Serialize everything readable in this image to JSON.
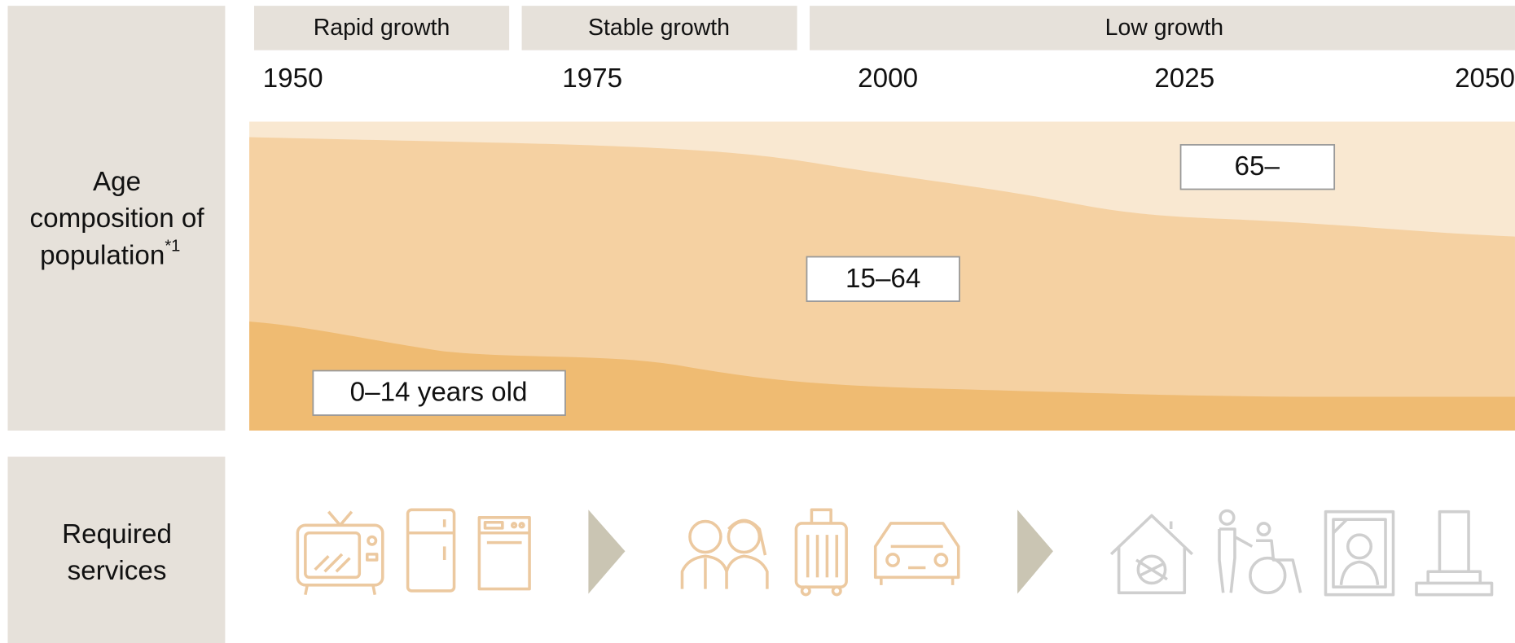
{
  "row_labels": {
    "age": {
      "lines": [
        "Age",
        "composition of",
        "population"
      ],
      "note": "*1"
    },
    "services": {
      "lines": [
        "Required",
        "services"
      ]
    }
  },
  "phases": [
    "Rapid growth",
    "Stable growth",
    "Low growth"
  ],
  "years": [
    "1950",
    "1975",
    "2000",
    "2025",
    "2050"
  ],
  "area_labels": [
    "65–",
    "15–64",
    "0–14 years old"
  ]
}
